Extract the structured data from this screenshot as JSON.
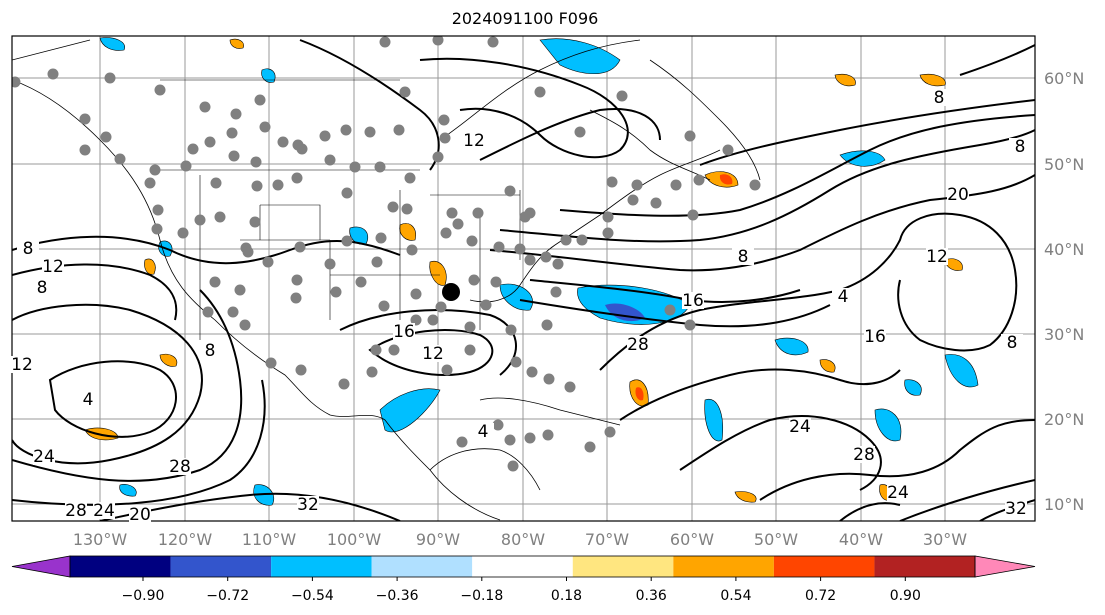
{
  "title": "2024091100 F096",
  "lon_labels": [
    "130°W",
    "120°W",
    "110°W",
    "100°W",
    "90°W",
    "80°W",
    "70°W",
    "60°W",
    "50°W",
    "40°W",
    "30°W"
  ],
  "lat_labels": [
    "60°N",
    "50°N",
    "40°N",
    "30°N",
    "20°N",
    "10°N"
  ],
  "contour_labels": [
    "8",
    "12",
    "8",
    "8",
    "12",
    "8",
    "20",
    "12",
    "8",
    "16",
    "16",
    "4",
    "16",
    "12",
    "28",
    "8",
    "12",
    "4",
    "8",
    "24",
    "4",
    "28",
    "28",
    "24",
    "24",
    "20",
    "32",
    "28",
    "24",
    "32"
  ],
  "colorbar": {
    "ticks": [
      "−0.90",
      "−0.72",
      "−0.54",
      "−0.36",
      "−0.18",
      "0.18",
      "0.36",
      "0.54",
      "0.72",
      "0.90"
    ],
    "colors": [
      "#9933cc",
      "#000080",
      "#3355cc",
      "#00bfff",
      "#b0e0ff",
      "#ffffff",
      "#ffe680",
      "#ffa500",
      "#ff4500",
      "#b22222",
      "#ff88b8"
    ]
  },
  "marker": "black-dot-location"
}
